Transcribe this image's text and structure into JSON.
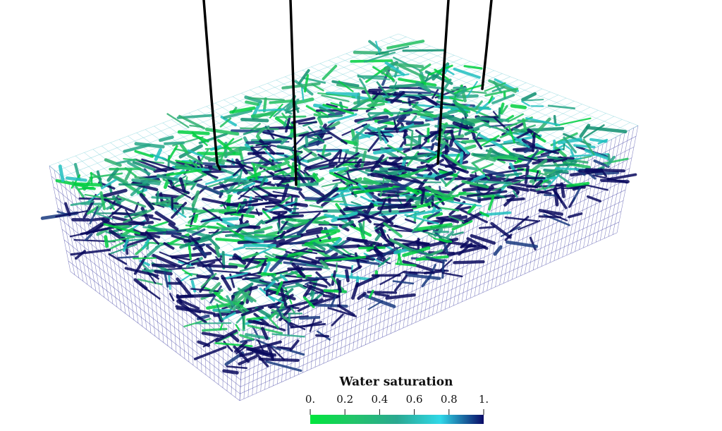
{
  "colorbar": {
    "title": "Water saturation",
    "lim": [
      0,
      1
    ],
    "ticks": [
      {
        "value": 0,
        "label": "0."
      },
      0.2,
      0.4,
      0.6,
      0.8,
      {
        "value": 1,
        "label": "1."
      }
    ],
    "colors": [
      "#00e63c",
      "#22c46a",
      "#2aa890",
      "#30d8e8",
      "#0a0a66"
    ]
  }
}
